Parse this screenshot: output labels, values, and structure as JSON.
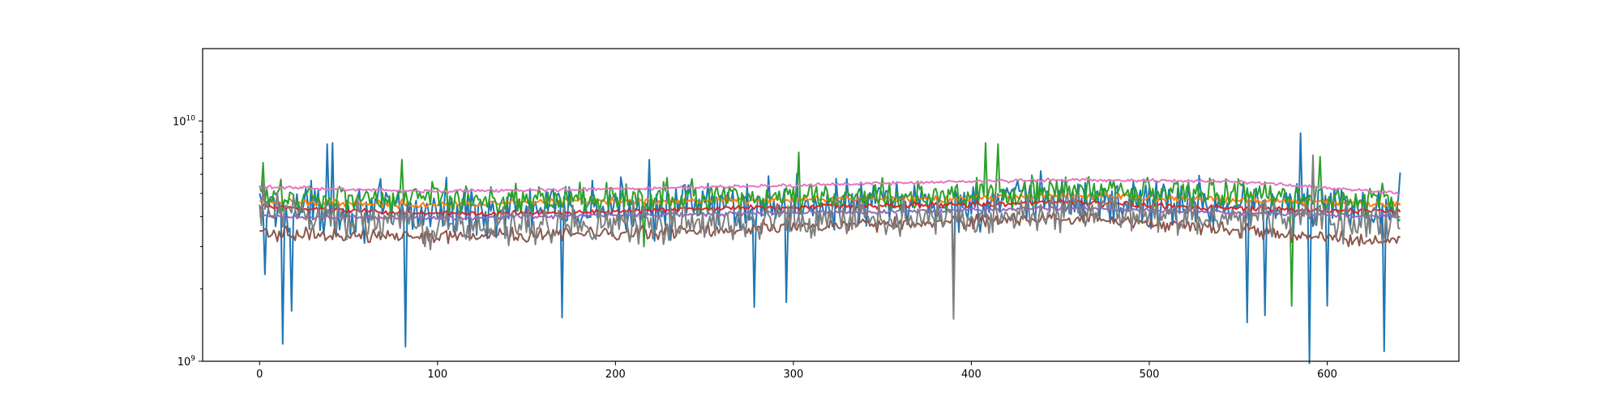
{
  "chart_data": {
    "type": "line",
    "title": "",
    "xlabel": "",
    "ylabel": "",
    "yscale": "log",
    "xlim": [
      -32,
      674
    ],
    "ylim": [
      1000000000,
      20000000000
    ],
    "grid": false,
    "legend": "none",
    "x_ticks": [
      {
        "value": 0,
        "label": "0"
      },
      {
        "value": 100,
        "label": "100"
      },
      {
        "value": 200,
        "label": "200"
      },
      {
        "value": 300,
        "label": "300"
      },
      {
        "value": 400,
        "label": "400"
      },
      {
        "value": 500,
        "label": "500"
      },
      {
        "value": 600,
        "label": "600"
      }
    ],
    "y_ticks": [
      {
        "value": 1000000000,
        "base": "10",
        "exponent": "9"
      },
      {
        "value": 10000000000,
        "base": "10",
        "exponent": "10"
      }
    ],
    "x_count": 642,
    "series": [
      {
        "color": "#1f77b4",
        "base": [
          [
            0,
            4300000000
          ],
          [
            100,
            4200000000
          ],
          [
            200,
            4300000000
          ],
          [
            300,
            4500000000
          ],
          [
            400,
            4500000000
          ],
          [
            450,
            4700000000
          ],
          [
            550,
            4500000000
          ],
          [
            641,
            4300000000
          ]
        ],
        "noise": 0.22,
        "spikes": [
          [
            3,
            2300000000
          ],
          [
            13,
            1180000000
          ],
          [
            18,
            1620000000
          ],
          [
            38,
            8000000000
          ],
          [
            41,
            8100000000
          ],
          [
            82,
            1150000000
          ],
          [
            170,
            1520000000
          ],
          [
            219,
            6900000000
          ],
          [
            278,
            1680000000
          ],
          [
            296,
            1760000000
          ],
          [
            390,
            1950000000
          ],
          [
            555,
            1450000000
          ],
          [
            565,
            1550000000
          ],
          [
            585,
            8900000000
          ],
          [
            590,
            950000000
          ],
          [
            600,
            1700000000
          ],
          [
            632,
            1100000000
          ],
          [
            641,
            6100000000
          ]
        ]
      },
      {
        "color": "#ff7f0e",
        "base": [
          [
            0,
            4600000000
          ],
          [
            100,
            4500000000
          ],
          [
            200,
            4650000000
          ],
          [
            300,
            4700000000
          ],
          [
            400,
            4750000000
          ],
          [
            450,
            4900000000
          ],
          [
            550,
            4700000000
          ],
          [
            641,
            4500000000
          ]
        ],
        "noise": 0.03,
        "spikes": []
      },
      {
        "color": "#2ca02c",
        "base": [
          [
            0,
            4800000000
          ],
          [
            100,
            4800000000
          ],
          [
            200,
            4700000000
          ],
          [
            300,
            4800000000
          ],
          [
            400,
            4900000000
          ],
          [
            450,
            5100000000
          ],
          [
            550,
            5000000000
          ],
          [
            641,
            4500000000
          ]
        ],
        "noise": 0.14,
        "spikes": [
          [
            2,
            6700000000
          ],
          [
            80,
            6900000000
          ],
          [
            216,
            3000000000
          ],
          [
            303,
            7400000000
          ],
          [
            408,
            8100000000
          ],
          [
            415,
            8000000000
          ],
          [
            580,
            1700000000
          ],
          [
            596,
            7100000000
          ]
        ]
      },
      {
        "color": "#d62728",
        "base": [
          [
            0,
            4400000000
          ],
          [
            100,
            4100000000
          ],
          [
            200,
            4200000000
          ],
          [
            300,
            4400000000
          ],
          [
            400,
            4500000000
          ],
          [
            450,
            4600000000
          ],
          [
            550,
            4300000000
          ],
          [
            641,
            4200000000
          ]
        ],
        "noise": 0.025,
        "spikes": []
      },
      {
        "color": "#9467bd",
        "base": [
          [
            0,
            4000000000
          ],
          [
            100,
            3950000000
          ],
          [
            200,
            4050000000
          ],
          [
            300,
            4150000000
          ],
          [
            400,
            4250000000
          ],
          [
            450,
            4350000000
          ],
          [
            550,
            4150000000
          ],
          [
            641,
            4000000000
          ]
        ],
        "noise": 0.02,
        "spikes": []
      },
      {
        "color": "#8c564b",
        "base": [
          [
            0,
            3400000000
          ],
          [
            100,
            3300000000
          ],
          [
            200,
            3400000000
          ],
          [
            300,
            3650000000
          ],
          [
            400,
            3800000000
          ],
          [
            450,
            3950000000
          ],
          [
            550,
            3500000000
          ],
          [
            641,
            3100000000
          ]
        ],
        "noise": 0.06,
        "spikes": []
      },
      {
        "color": "#e377c2",
        "base": [
          [
            0,
            5300000000
          ],
          [
            100,
            5100000000
          ],
          [
            200,
            5200000000
          ],
          [
            300,
            5400000000
          ],
          [
            400,
            5600000000
          ],
          [
            450,
            5700000000
          ],
          [
            550,
            5600000000
          ],
          [
            641,
            5000000000
          ]
        ],
        "noise": 0.015,
        "spikes": []
      },
      {
        "color": "#7f7f7f",
        "base": [
          [
            0,
            4100000000
          ],
          [
            100,
            3700000000
          ],
          [
            200,
            3700000000
          ],
          [
            300,
            3900000000
          ],
          [
            400,
            4000000000
          ],
          [
            450,
            4200000000
          ],
          [
            550,
            4000000000
          ],
          [
            641,
            3800000000
          ]
        ],
        "noise": 0.16,
        "spikes": [
          [
            2,
            5600000000
          ],
          [
            390,
            1500000000
          ],
          [
            592,
            7200000000
          ]
        ]
      }
    ]
  }
}
